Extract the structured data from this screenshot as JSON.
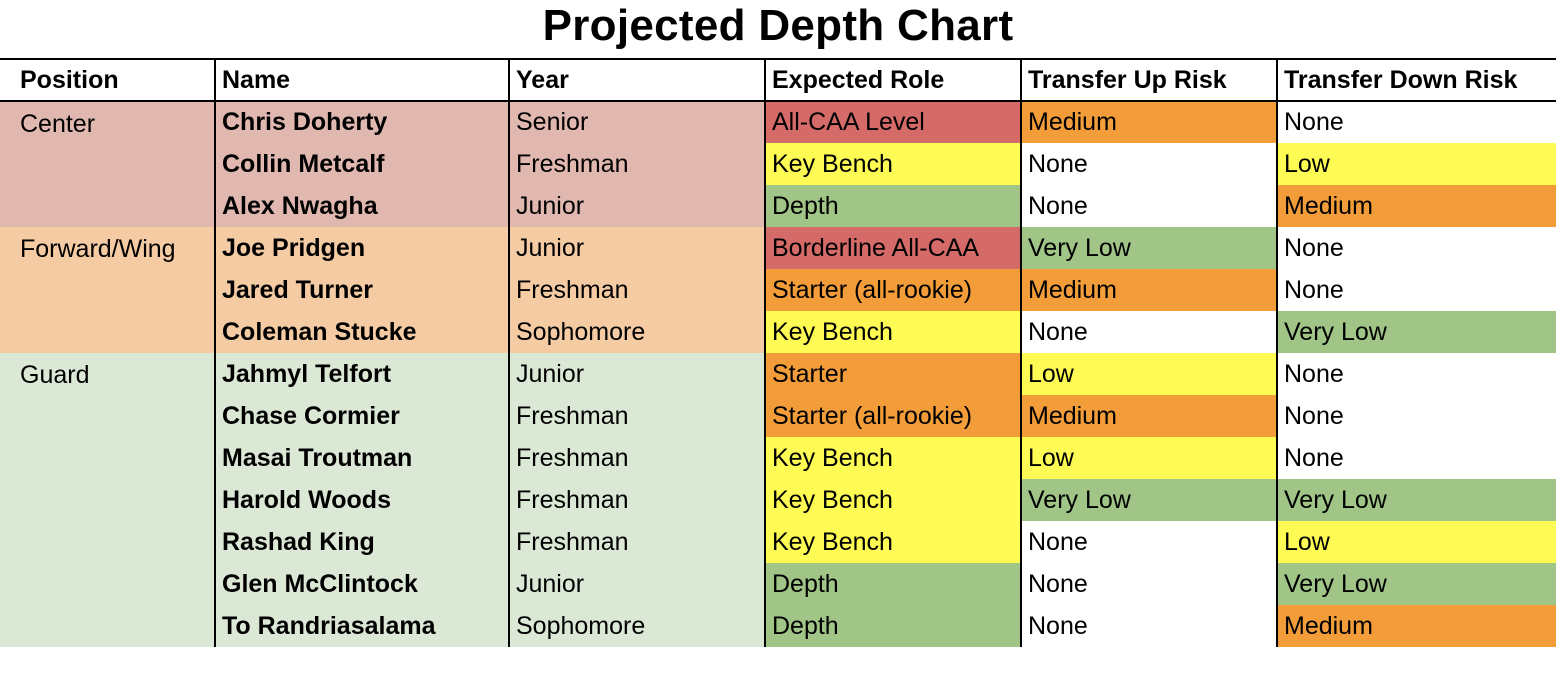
{
  "title": "Projected Depth Chart",
  "headers": [
    "Position",
    "Name",
    "Year",
    "Expected Role",
    "Transfer Up Risk",
    "Transfer Down Risk"
  ],
  "colors": {
    "Center": "#e0b8b0",
    "Forward/Wing": "#f4cba3",
    "Guard": "#dce8d6",
    "All-CAA Level": "#d46b69",
    "Borderline All-CAA": "#d46b69",
    "Starter (all-rookie)": "#f39d3a",
    "Starter": "#f39d3a",
    "Key Bench": "#fefc54",
    "Depth": "#a0c587",
    "Medium": "#f39d3a",
    "Low": "#fefc54",
    "Very Low": "#a0c587",
    "None": "#ffffff"
  },
  "groups": [
    {
      "position": "Center",
      "rows": [
        {
          "name": "Chris Doherty",
          "year": "Senior",
          "role": "All-CAA Level",
          "up": "Medium",
          "down": "None"
        },
        {
          "name": "Collin Metcalf",
          "year": "Freshman",
          "role": "Key Bench",
          "up": "None",
          "down": "Low"
        },
        {
          "name": "Alex Nwagha",
          "year": "Junior",
          "role": "Depth",
          "up": "None",
          "down": "Medium"
        }
      ]
    },
    {
      "position": "Forward/Wing",
      "rows": [
        {
          "name": "Joe Pridgen",
          "year": "Junior",
          "role": "Borderline All-CAA",
          "up": "Very Low",
          "down": "None"
        },
        {
          "name": "Jared Turner",
          "year": "Freshman",
          "role": "Starter (all-rookie)",
          "up": "Medium",
          "down": "None"
        },
        {
          "name": "Coleman Stucke",
          "year": "Sophomore",
          "role": "Key Bench",
          "up": "None",
          "down": "Very Low"
        }
      ]
    },
    {
      "position": "Guard",
      "rows": [
        {
          "name": "Jahmyl Telfort",
          "year": "Junior",
          "role": "Starter",
          "up": "Low",
          "down": "None"
        },
        {
          "name": "Chase Cormier",
          "year": "Freshman",
          "role": "Starter (all-rookie)",
          "up": "Medium",
          "down": "None"
        },
        {
          "name": "Masai Troutman",
          "year": "Freshman",
          "role": "Key Bench",
          "up": "Low",
          "down": "None"
        },
        {
          "name": "Harold Woods",
          "year": "Freshman",
          "role": "Key Bench",
          "up": "Very Low",
          "down": "Very Low"
        },
        {
          "name": "Rashad King",
          "year": "Freshman",
          "role": "Key Bench",
          "up": "None",
          "down": "Low"
        },
        {
          "name": "Glen McClintock",
          "year": "Junior",
          "role": "Depth",
          "up": "None",
          "down": "Very Low"
        },
        {
          "name": "To Randriasalama",
          "year": "Sophomore",
          "role": "Depth",
          "up": "None",
          "down": "Medium"
        }
      ]
    }
  ]
}
